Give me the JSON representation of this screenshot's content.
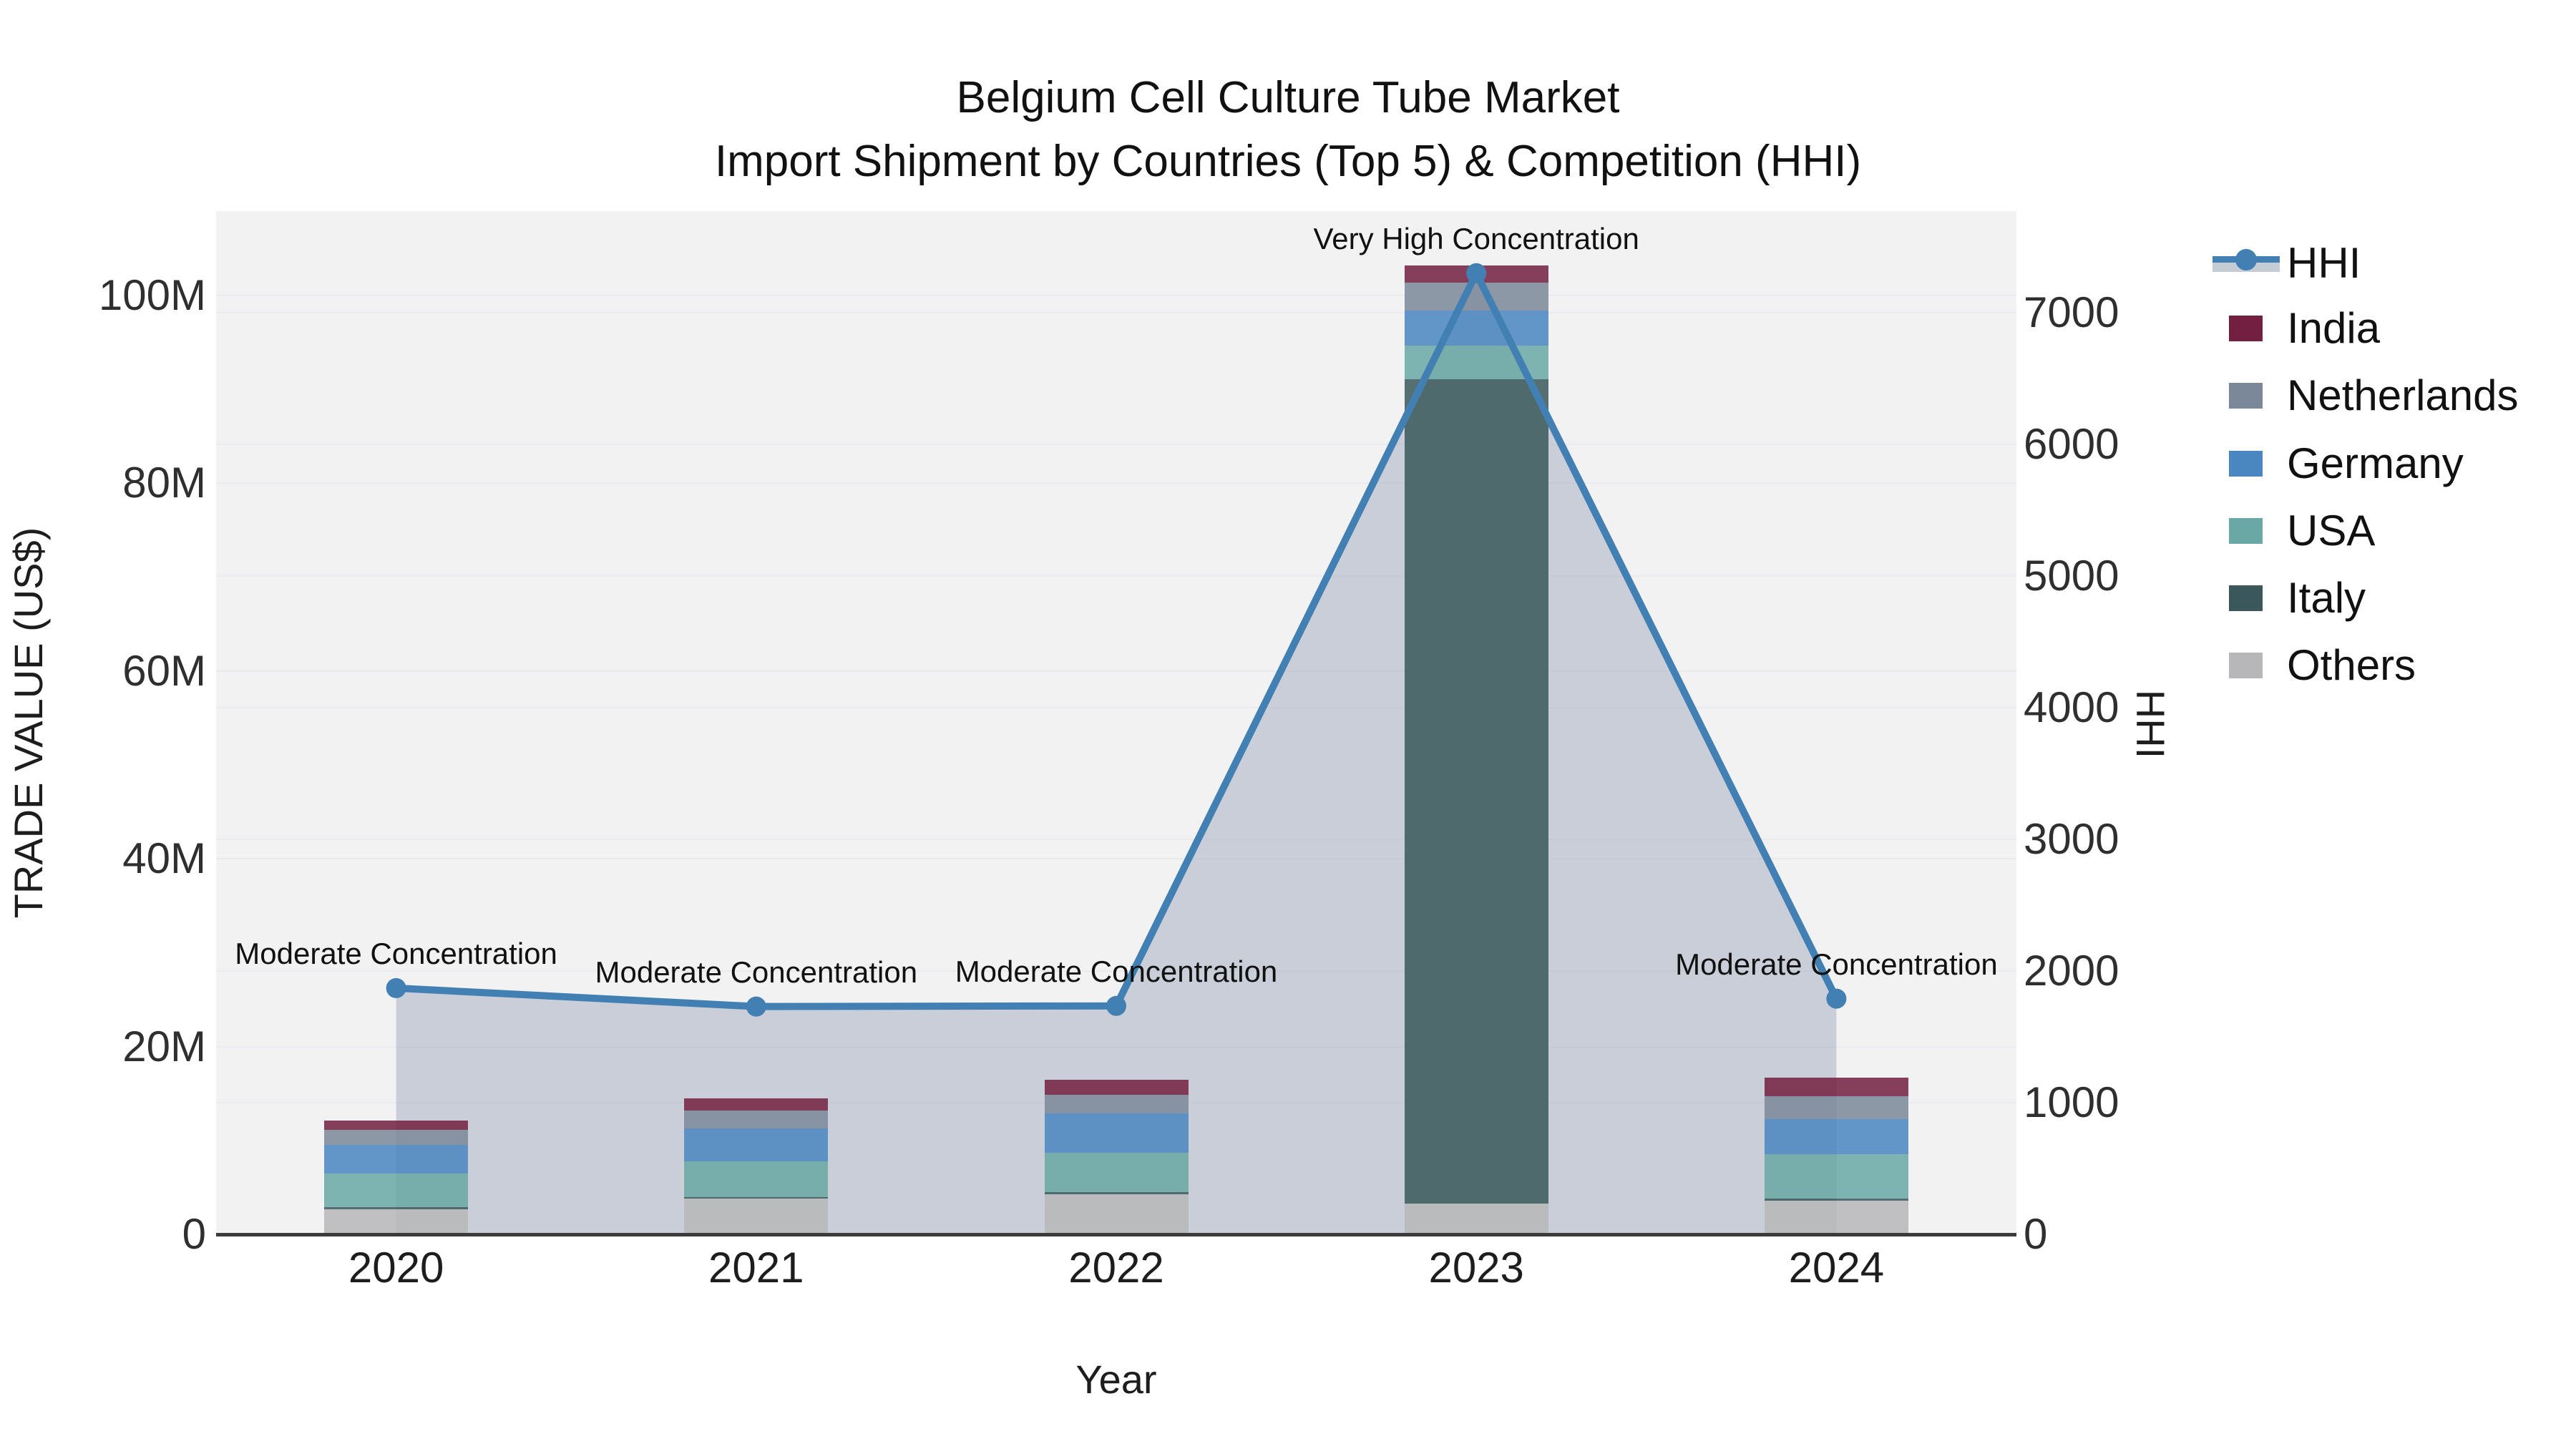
{
  "title": {
    "line1": "Belgium Cell Culture Tube Market",
    "line2": "Import Shipment by Countries (Top 5) & Competition (HHI)"
  },
  "axes": {
    "y_left": {
      "title": "TRADE VALUE (US$)",
      "tick_labels": [
        "0",
        "20M",
        "40M",
        "60M",
        "80M",
        "100M"
      ]
    },
    "y_right": {
      "title": "HHI",
      "tick_labels": [
        "0",
        "1000",
        "2000",
        "3000",
        "4000",
        "5000",
        "6000",
        "7000"
      ]
    },
    "x": {
      "title": "Year",
      "tick_labels": [
        "2020",
        "2021",
        "2022",
        "2023",
        "2024"
      ]
    }
  },
  "legend": {
    "items": [
      {
        "label": "HHI",
        "type": "line",
        "color": "#4280b4"
      },
      {
        "label": "India",
        "type": "bar",
        "color": "#732040"
      },
      {
        "label": "Netherlands",
        "type": "bar",
        "color": "#7b8899"
      },
      {
        "label": "Germany",
        "type": "bar",
        "color": "#4a86bf"
      },
      {
        "label": "USA",
        "type": "bar",
        "color": "#69a8a4"
      },
      {
        "label": "Italy",
        "type": "bar",
        "color": "#3a585b"
      },
      {
        "label": "Others",
        "type": "bar",
        "color": "#b7b7b9"
      }
    ]
  },
  "chart_data": {
    "type": "bar+line",
    "title": "Belgium Cell Culture Tube Market — Import Shipment by Countries (Top 5) & Competition (HHI)",
    "categories": [
      "2020",
      "2021",
      "2022",
      "2023",
      "2024"
    ],
    "bar_unit": "million US$",
    "bar_stack_order_bottom_to_top": [
      "Others",
      "Italy",
      "USA",
      "Germany",
      "Netherlands",
      "India"
    ],
    "series": [
      {
        "name": "India",
        "color": "#732040",
        "values": [
          1.0,
          1.3,
          1.6,
          1.8,
          2.0
        ]
      },
      {
        "name": "Netherlands",
        "color": "#7b8899",
        "values": [
          1.6,
          1.9,
          2.0,
          3.0,
          2.4
        ]
      },
      {
        "name": "Germany",
        "color": "#4a86bf",
        "values": [
          3.0,
          3.5,
          4.2,
          3.7,
          3.8
        ]
      },
      {
        "name": "USA",
        "color": "#69a8a4",
        "values": [
          3.6,
          3.8,
          4.2,
          3.6,
          4.7
        ]
      },
      {
        "name": "Italy",
        "color": "#3a585b",
        "values": [
          0.2,
          0.2,
          0.2,
          87.8,
          0.2
        ]
      },
      {
        "name": "Others",
        "color": "#b7b7b9",
        "values": [
          2.7,
          3.8,
          4.3,
          3.3,
          3.6
        ]
      }
    ],
    "hhi": {
      "name": "HHI",
      "type": "line+area",
      "line_color": "#4280b4",
      "area_fill_color": "rgba(167,177,193,0.55)",
      "values": [
        1870,
        1730,
        1735,
        7300,
        1790
      ]
    },
    "annotations": [
      {
        "category": "2020",
        "text": "Moderate Concentration"
      },
      {
        "category": "2021",
        "text": "Moderate Concentration"
      },
      {
        "category": "2022",
        "text": "Moderate Concentration"
      },
      {
        "category": "2023",
        "text": "Very High Concentration"
      },
      {
        "category": "2024",
        "text": "Moderate Concentration"
      }
    ],
    "xlabel": "Year",
    "ylabel_left": "TRADE VALUE (US$)",
    "ylabel_right": "HHI",
    "ylim_left": [
      0,
      109000000
    ],
    "ylim_right": [
      0,
      7770
    ],
    "grid": true,
    "legend_position": "right"
  },
  "colors": {
    "plot_bg": "#f2f2f3",
    "paper_bg": "#ffffff",
    "gridline": "#e8eaed",
    "axis_line": "#3b3b3b",
    "tick_text": "#2f2f2f"
  }
}
